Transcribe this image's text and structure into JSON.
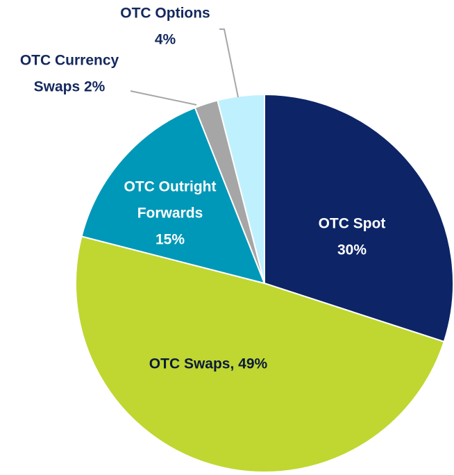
{
  "chart_data": {
    "type": "pie",
    "values": [
      30,
      49,
      15,
      2,
      4
    ],
    "labels": [
      [
        "OTC Spot",
        "30%"
      ],
      [
        "OTC Swaps, 49%"
      ],
      [
        "OTC Outright",
        "Forwards",
        "15%"
      ],
      [
        "OTC Currency",
        "Swaps 2%"
      ],
      [
        "OTC Options",
        "4%"
      ]
    ],
    "colors": [
      "#0d2467",
      "#bfd730",
      "#0098b8",
      "#a6a6a6",
      "#bff0fd"
    ],
    "label_colors": [
      "#ffffff",
      "#0b1a3a",
      "#ffffff",
      "#14285e",
      "#14285e"
    ]
  }
}
